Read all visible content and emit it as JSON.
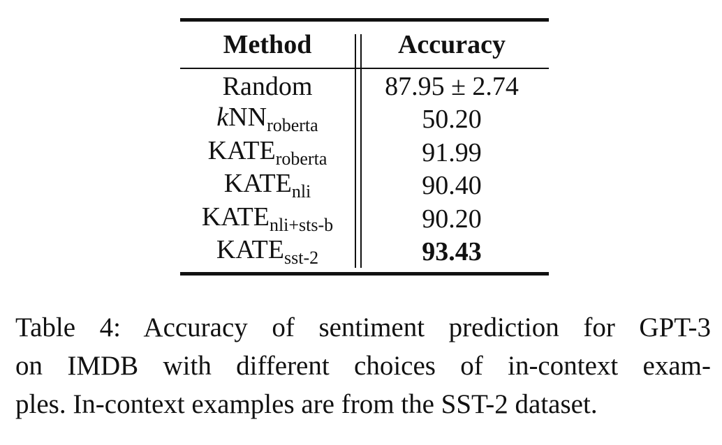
{
  "table": {
    "header": {
      "method": "Method",
      "accuracy": "Accuracy"
    },
    "rows": [
      {
        "method_prefix": "",
        "method_italic": "",
        "method_main": "Random",
        "method_sub": "",
        "accuracy": "87.95 ± 2.74",
        "bold": false
      },
      {
        "method_prefix": "",
        "method_italic": "k",
        "method_main": "NN",
        "method_sub": "roberta",
        "accuracy": "50.20",
        "bold": false
      },
      {
        "method_prefix": "",
        "method_italic": "",
        "method_main": "KATE",
        "method_sub": "roberta",
        "accuracy": "91.99",
        "bold": false
      },
      {
        "method_prefix": "",
        "method_italic": "",
        "method_main": "KATE",
        "method_sub": "nli",
        "accuracy": "90.40",
        "bold": false
      },
      {
        "method_prefix": "",
        "method_italic": "",
        "method_main": "KATE",
        "method_sub": "nli+sts-b",
        "accuracy": "90.20",
        "bold": false
      },
      {
        "method_prefix": "",
        "method_italic": "",
        "method_main": "KATE",
        "method_sub": "sst-2",
        "accuracy": "93.43",
        "bold": true
      }
    ]
  },
  "caption": {
    "line1": "Table 4: Accuracy of sentiment prediction for GPT-3",
    "line2": "on IMDB with different choices of in-context exam-",
    "line3": "ples. In-context examples are from the SST-2 dataset."
  }
}
